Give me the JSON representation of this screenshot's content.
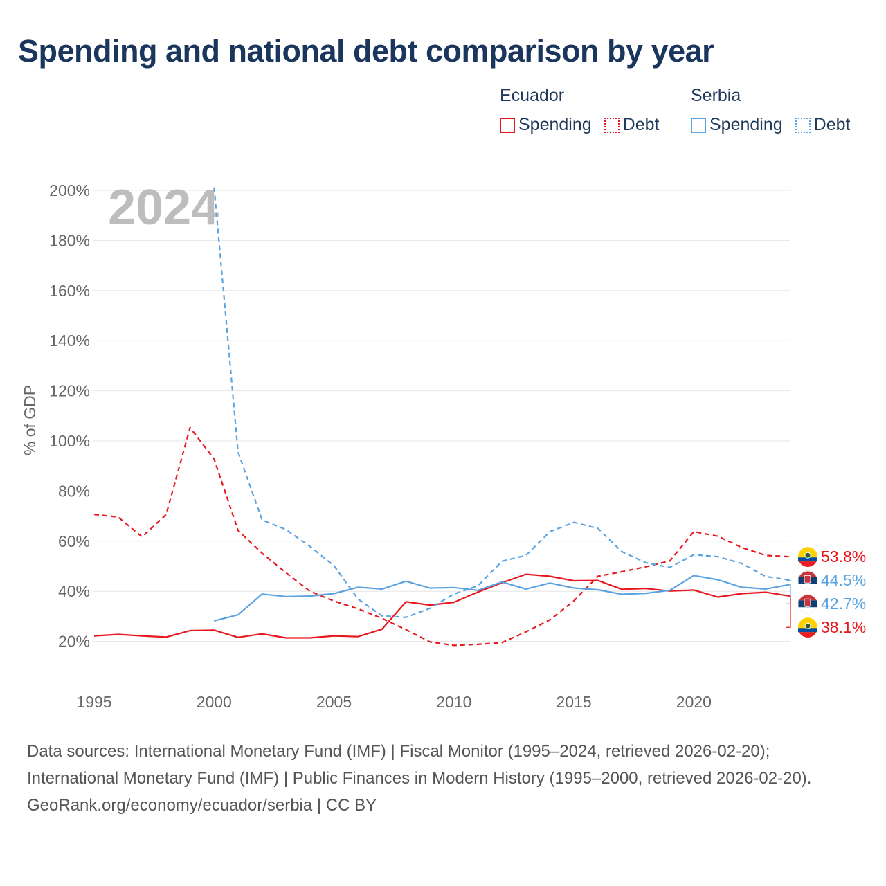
{
  "title": "Spending and national debt comparison by year",
  "legend": {
    "ecuador": {
      "country": "Ecuador",
      "spending": "Spending",
      "debt": "Debt"
    },
    "serbia": {
      "country": "Serbia",
      "spending": "Spending",
      "debt": "Debt"
    }
  },
  "colors": {
    "ecuador": "#e8171f",
    "serbia": "#5aa3e0",
    "grid": "#e6e6e6",
    "axis_text": "#666666",
    "year_watermark": "#bdbdbd"
  },
  "chart_data": {
    "type": "line",
    "year_label": "2024",
    "ylabel": "% of GDP",
    "xlim": [
      1995,
      2024
    ],
    "ylim": [
      0,
      200
    ],
    "x_ticks": [
      1995,
      2000,
      2005,
      2010,
      2015,
      2020
    ],
    "y_ticks": [
      20,
      40,
      60,
      80,
      100,
      120,
      140,
      160,
      180,
      200
    ],
    "y_tick_labels": [
      "20%",
      "40%",
      "60%",
      "80%",
      "100%",
      "120%",
      "140%",
      "160%",
      "180%",
      "200%"
    ],
    "series": [
      {
        "name": "Ecuador Spending",
        "country": "ecuador",
        "style": "solid",
        "label": "38.1%",
        "x": [
          1995,
          1996,
          1997,
          1998,
          1999,
          2000,
          2001,
          2002,
          2003,
          2004,
          2005,
          2006,
          2007,
          2008,
          2009,
          2010,
          2011,
          2012,
          2013,
          2014,
          2015,
          2016,
          2017,
          2018,
          2019,
          2020,
          2021,
          2022,
          2023,
          2024
        ],
        "y": [
          22.2,
          22.8,
          22.2,
          21.7,
          24.3,
          24.5,
          21.6,
          23.0,
          21.4,
          21.4,
          22.2,
          21.9,
          24.9,
          35.8,
          34.5,
          35.6,
          39.7,
          43.4,
          46.8,
          46.0,
          44.2,
          44.3,
          40.8,
          41.1,
          40.1,
          40.5,
          37.7,
          39.1,
          39.6,
          38.1
        ]
      },
      {
        "name": "Ecuador Debt",
        "country": "ecuador",
        "style": "dashed",
        "label": "53.8%",
        "x": [
          1995,
          1996,
          1997,
          1998,
          1999,
          2000,
          2001,
          2002,
          2003,
          2004,
          2005,
          2006,
          2007,
          2008,
          2009,
          2010,
          2011,
          2012,
          2013,
          2014,
          2015,
          2016,
          2017,
          2018,
          2019,
          2020,
          2021,
          2022,
          2023,
          2024
        ],
        "y": [
          70.7,
          69.6,
          61.7,
          70.6,
          105.3,
          92.8,
          64.3,
          55.2,
          47.4,
          40.0,
          36.1,
          33.0,
          29.2,
          24.7,
          19.8,
          18.4,
          18.8,
          19.5,
          23.8,
          28.6,
          36.2,
          46.0,
          47.8,
          49.8,
          52.1,
          63.8,
          62.0,
          57.5,
          54.3,
          53.8
        ]
      },
      {
        "name": "Serbia Spending",
        "country": "serbia",
        "style": "solid",
        "label": "42.7%",
        "x": [
          2000,
          2001,
          2002,
          2003,
          2004,
          2005,
          2006,
          2007,
          2008,
          2009,
          2010,
          2011,
          2012,
          2013,
          2014,
          2015,
          2016,
          2017,
          2018,
          2019,
          2020,
          2021,
          2022,
          2023,
          2024
        ],
        "y": [
          28.2,
          30.6,
          38.9,
          37.9,
          38.1,
          39.1,
          41.6,
          40.9,
          44.0,
          41.3,
          41.5,
          40.4,
          43.7,
          40.9,
          43.3,
          41.3,
          40.6,
          38.8,
          39.2,
          40.4,
          46.3,
          44.6,
          41.6,
          40.9,
          42.7
        ]
      },
      {
        "name": "Serbia Debt",
        "country": "serbia",
        "style": "dashed",
        "label": "44.5%",
        "x": [
          2000,
          2001,
          2002,
          2003,
          2004,
          2005,
          2006,
          2007,
          2008,
          2009,
          2010,
          2011,
          2012,
          2013,
          2014,
          2015,
          2016,
          2017,
          2018,
          2019,
          2020,
          2021,
          2022,
          2023,
          2024
        ],
        "y": [
          201.2,
          95.6,
          68.5,
          64.6,
          57.9,
          50.2,
          36.9,
          30.2,
          29.6,
          33.2,
          38.9,
          42.2,
          52.0,
          54.3,
          63.8,
          67.5,
          65.1,
          55.8,
          51.4,
          49.5,
          54.6,
          53.8,
          51.1,
          45.9,
          44.5
        ]
      }
    ]
  },
  "footer": {
    "sources": "Data sources: International Monetary Fund (IMF) | Fiscal Monitor (1995–2024, retrieved 2026-02-20); International Monetary Fund (IMF) | Public Finances in Modern History (1995–2000, retrieved 2026-02-20).",
    "credit": "GeoRank.org/economy/ecuador/serbia | CC BY"
  }
}
